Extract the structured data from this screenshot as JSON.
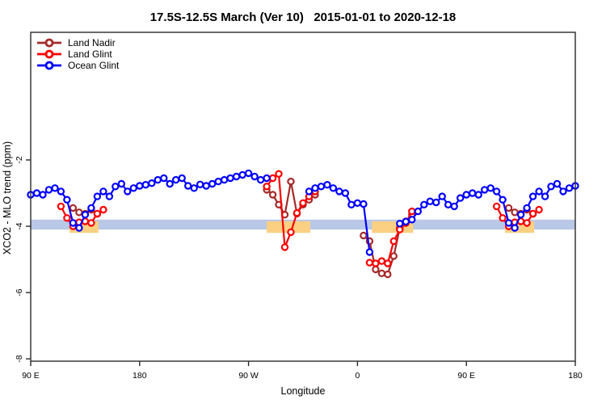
{
  "title": "17.5S-12.5S March (Ver 10)   2015-01-01 to 2020-12-18",
  "legend": {
    "items": [
      {
        "label": "Land Nadir",
        "color": "#A52A2A"
      },
      {
        "label": "Land Glint",
        "color": "#FF0000"
      },
      {
        "label": "Ocean Glint",
        "color": "#0000FF"
      }
    ]
  },
  "axes": {
    "x": {
      "label": "Longitude",
      "range": [
        90,
        540
      ],
      "ticks": [
        {
          "pos": 90,
          "label": "90 E"
        },
        {
          "pos": 180,
          "label": "180"
        },
        {
          "pos": 270,
          "label": "90 W"
        },
        {
          "pos": 360,
          "label": "0"
        },
        {
          "pos": 450,
          "label": "90 E"
        },
        {
          "pos": 540,
          "label": "180"
        }
      ]
    },
    "y": {
      "label": "XCO2 - MLO trend (ppm)",
      "range": [
        -8.07,
        1.85
      ],
      "ticks": [
        {
          "pos": -2,
          "label": "-2"
        },
        {
          "pos": -4,
          "label": "-4"
        },
        {
          "pos": -6,
          "label": "-6"
        },
        {
          "pos": -8,
          "label": "-8"
        }
      ]
    }
  },
  "chart_data": {
    "type": "line",
    "x_axis_note": "longitude unwrapped eastward from 90E; axis labels repeat 90E..180 at both ends",
    "marker": "open-circle",
    "series": [
      {
        "name": "Land Nadir",
        "color": "#A52A2A",
        "segments": [
          [
            [
              125,
              -3.45
            ],
            [
              130,
              -3.58
            ],
            [
              135,
              -3.62
            ],
            [
              140,
              -3.5
            ],
            [
              145,
              -3.63
            ]
          ],
          [
            [
              285,
              -2.9
            ],
            [
              290,
              -3.05
            ],
            [
              295,
              -3.35
            ],
            [
              300,
              -3.65
            ],
            [
              305,
              -2.65
            ],
            [
              310,
              -3.62
            ],
            [
              315,
              -3.35
            ],
            [
              320,
              -3.2
            ],
            [
              325,
              -3.05
            ]
          ],
          [
            [
              365,
              -4.28
            ],
            [
              370,
              -4.45
            ],
            [
              375,
              -5.3
            ],
            [
              380,
              -5.42
            ],
            [
              385,
              -5.45
            ],
            [
              390,
              -4.9
            ],
            [
              395,
              -4.05
            ],
            [
              400,
              -3.85
            ],
            [
              405,
              -3.65
            ]
          ],
          [
            [
              485,
              -3.45
            ],
            [
              490,
              -3.58
            ],
            [
              495,
              -3.62
            ],
            [
              500,
              -3.5
            ],
            [
              505,
              -3.63
            ]
          ]
        ]
      },
      {
        "name": "Land Glint",
        "color": "#FF0000",
        "segments": [
          [
            [
              115,
              -3.4
            ],
            [
              120,
              -3.75
            ],
            [
              125,
              -4.0
            ],
            [
              130,
              -3.88
            ],
            [
              135,
              -3.85
            ],
            [
              140,
              -3.9
            ],
            [
              145,
              -3.62
            ],
            [
              150,
              -3.5
            ]
          ],
          [
            [
              285,
              -2.8
            ],
            [
              290,
              -2.55
            ],
            [
              295,
              -2.42
            ],
            [
              300,
              -4.63
            ],
            [
              305,
              -4.18
            ],
            [
              310,
              -3.6
            ],
            [
              315,
              -3.3
            ],
            [
              320,
              -3.1
            ],
            [
              325,
              -2.95
            ]
          ],
          [
            [
              370,
              -5.1
            ],
            [
              375,
              -5.12
            ],
            [
              380,
              -5.05
            ],
            [
              385,
              -5.12
            ],
            [
              390,
              -4.45
            ],
            [
              395,
              -4.1
            ],
            [
              400,
              -3.9
            ],
            [
              405,
              -3.55
            ]
          ],
          [
            [
              475,
              -3.4
            ],
            [
              480,
              -3.75
            ],
            [
              485,
              -4.0
            ],
            [
              490,
              -3.88
            ],
            [
              495,
              -3.85
            ],
            [
              500,
              -3.9
            ],
            [
              505,
              -3.62
            ],
            [
              510,
              -3.5
            ]
          ]
        ]
      },
      {
        "name": "Ocean Glint",
        "color": "#0000FF",
        "segments": [
          [
            [
              90,
              -3.05
            ],
            [
              95,
              -3.0
            ],
            [
              100,
              -3.05
            ],
            [
              105,
              -2.9
            ],
            [
              110,
              -2.85
            ],
            [
              115,
              -2.95
            ],
            [
              120,
              -3.2
            ],
            [
              125,
              -3.9
            ],
            [
              130,
              -4.05
            ],
            [
              135,
              -3.65
            ],
            [
              140,
              -3.45
            ],
            [
              145,
              -3.1
            ],
            [
              150,
              -2.95
            ],
            [
              155,
              -3.1
            ],
            [
              160,
              -2.8
            ],
            [
              165,
              -2.72
            ],
            [
              170,
              -2.95
            ],
            [
              175,
              -2.85
            ],
            [
              180,
              -2.78
            ],
            [
              185,
              -2.75
            ],
            [
              190,
              -2.7
            ],
            [
              195,
              -2.6
            ],
            [
              200,
              -2.55
            ],
            [
              205,
              -2.72
            ],
            [
              210,
              -2.6
            ],
            [
              215,
              -2.55
            ],
            [
              220,
              -2.78
            ],
            [
              225,
              -2.85
            ],
            [
              230,
              -2.74
            ],
            [
              235,
              -2.78
            ],
            [
              240,
              -2.72
            ],
            [
              245,
              -2.65
            ],
            [
              250,
              -2.6
            ],
            [
              255,
              -2.55
            ],
            [
              260,
              -2.5
            ],
            [
              265,
              -2.45
            ],
            [
              270,
              -2.4
            ],
            [
              275,
              -2.5
            ],
            [
              280,
              -2.6
            ],
            [
              285,
              -2.55
            ]
          ],
          [
            [
              320,
              -2.95
            ],
            [
              325,
              -2.85
            ],
            [
              330,
              -2.8
            ],
            [
              335,
              -2.75
            ],
            [
              340,
              -2.85
            ],
            [
              345,
              -2.95
            ],
            [
              350,
              -3.0
            ],
            [
              355,
              -3.35
            ],
            [
              360,
              -3.3
            ],
            [
              365,
              -3.33
            ],
            [
              370,
              -4.78
            ]
          ],
          [
            [
              395,
              -3.92
            ],
            [
              400,
              -3.86
            ],
            [
              405,
              -3.8
            ],
            [
              410,
              -3.55
            ],
            [
              415,
              -3.35
            ],
            [
              420,
              -3.25
            ],
            [
              425,
              -3.28
            ],
            [
              430,
              -3.1
            ],
            [
              435,
              -3.35
            ],
            [
              440,
              -3.4
            ],
            [
              445,
              -3.15
            ],
            [
              450,
              -3.05
            ],
            [
              455,
              -3.0
            ],
            [
              460,
              -3.05
            ],
            [
              465,
              -2.9
            ],
            [
              470,
              -2.85
            ],
            [
              475,
              -2.95
            ],
            [
              480,
              -3.2
            ],
            [
              485,
              -3.9
            ],
            [
              490,
              -4.05
            ],
            [
              495,
              -3.65
            ],
            [
              500,
              -3.45
            ],
            [
              505,
              -3.1
            ],
            [
              510,
              -2.95
            ],
            [
              515,
              -3.1
            ],
            [
              520,
              -2.8
            ],
            [
              525,
              -2.72
            ],
            [
              530,
              -2.95
            ],
            [
              535,
              -2.85
            ],
            [
              540,
              -2.78
            ]
          ]
        ]
      }
    ],
    "bands": {
      "reference_band": {
        "x_from": 90,
        "x_to": 540,
        "y_from": -3.8,
        "y_to": -4.1,
        "color": "#b9c8e6"
      },
      "land_band": {
        "y_from": -3.85,
        "y_to": -4.2,
        "color": "#fbd083",
        "segments": [
          {
            "x_from": 122,
            "x_to": 146
          },
          {
            "x_from": 285,
            "x_to": 321
          },
          {
            "x_from": 372,
            "x_to": 406
          },
          {
            "x_from": 482,
            "x_to": 506
          }
        ]
      }
    }
  }
}
